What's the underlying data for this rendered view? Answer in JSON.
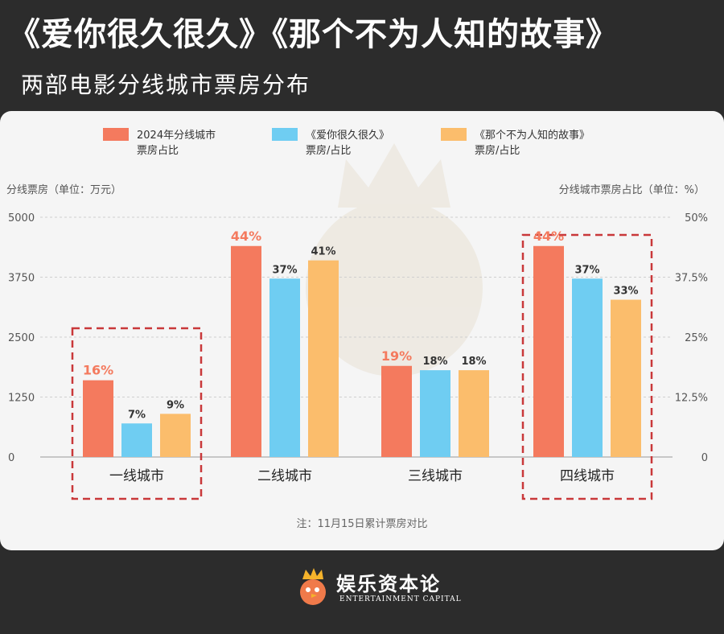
{
  "header": {
    "title": "《爱你很久很久》《那个不为人知的故事》",
    "subtitle": "两部电影分线城市票房分布"
  },
  "colors": {
    "page_bg": "#2c2c2c",
    "card_bg": "#f5f5f5",
    "series_2024": "#f47a5e",
    "series_love": "#6fcdf2",
    "series_story": "#fbbd6c",
    "highlight_box": "#c9383a"
  },
  "chart_data": {
    "type": "bar",
    "categories": [
      "一线城市",
      "二线城市",
      "三线城市",
      "四线城市"
    ],
    "series": [
      {
        "name": "2024年分线城市票房占比",
        "axis": "right",
        "unit": "%",
        "values": [
          16,
          44,
          19,
          44
        ],
        "labels": [
          "16%",
          "44%",
          "19%",
          "44%"
        ],
        "label_emphasis": true
      },
      {
        "name": "《爱你很久很久》票房/占比",
        "axis": "left",
        "unit": "万元",
        "values": [
          700,
          3720,
          1810,
          3720
        ],
        "labels": [
          "7%",
          "37%",
          "18%",
          "37%"
        ]
      },
      {
        "name": "《那个不为人知的故事》票房/占比",
        "axis": "left",
        "unit": "万元",
        "values": [
          900,
          4100,
          1810,
          3280
        ],
        "labels": [
          "9%",
          "41%",
          "18%",
          "33%"
        ]
      }
    ],
    "legend": [
      {
        "line1": "2024年分线城市",
        "line2": "票房占比",
        "color": "#f47a5e"
      },
      {
        "line1": "《爱你很久很久》",
        "line2": "票房/占比",
        "color": "#6fcdf2"
      },
      {
        "line1": "《那个不为人知的故事》",
        "line2": "票房/占比",
        "color": "#fbbd6c"
      }
    ],
    "legend_position": "top",
    "ylabel_left": "分线票房（单位：万元）",
    "ylabel_right": "分线城市票房占比（单位：%）",
    "y_left": {
      "min": 0,
      "max": 5000,
      "ticks": [
        "0",
        "1250",
        "2500",
        "3750",
        "5000"
      ]
    },
    "y_right": {
      "min": 0,
      "max": 50,
      "ticks": [
        "0",
        "12.5%",
        "25%",
        "37.5%",
        "50%"
      ]
    },
    "grid": true,
    "highlighted_categories": [
      "一线城市",
      "四线城市"
    ],
    "note": "注：11月15日累计票房对比"
  },
  "watermark": {
    "brand": "娱乐资本论",
    "brand_en": "ENTERTAINMENT CAPITAL"
  }
}
